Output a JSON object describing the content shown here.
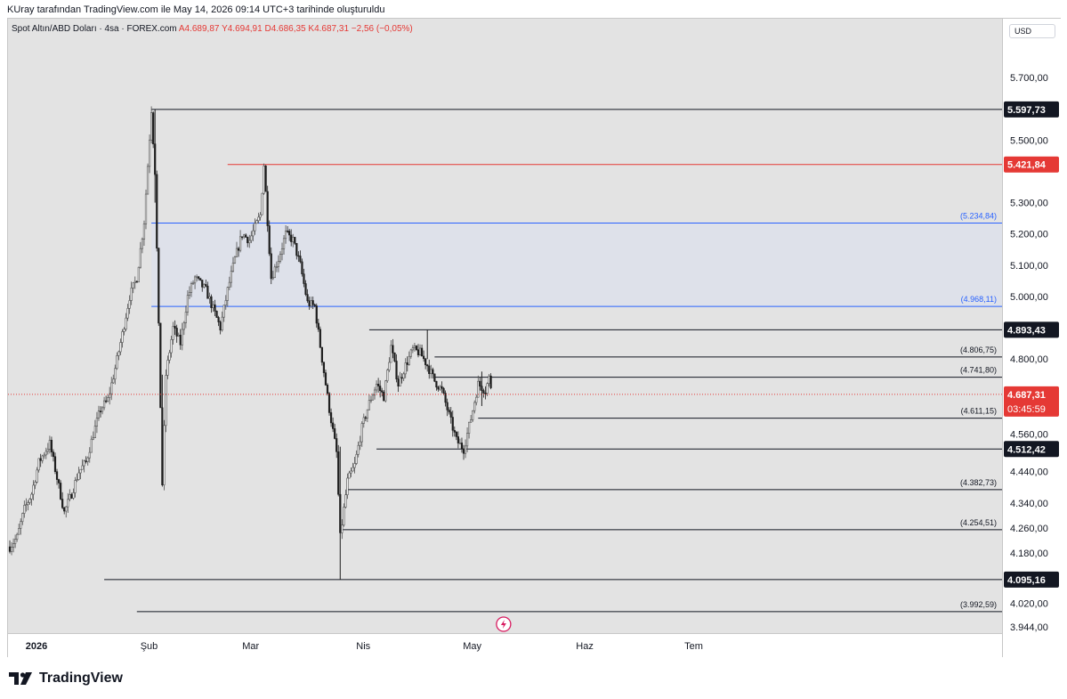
{
  "header": {
    "credit": "KUray tarafından TradingView.com ile May 14, 2026 09:14 UTC+3 tarihinde oluşturuldu"
  },
  "legend": {
    "symbol": "Spot Altın/ABD Doları · 4sa · FOREX.com",
    "open": "A4.689,87",
    "high": "Y4.694,91",
    "low": "D4.686,35",
    "close": "K4.687,31",
    "change": "−2,56 (−0,05%)"
  },
  "currency_button": "USD",
  "footer": {
    "brand": "TradingView"
  },
  "colors": {
    "background": "#e3e3e3",
    "up_candle": "#4e4e4e",
    "down_candle": "#1f1f1f",
    "red_level": "#e53935",
    "blue_level": "#2962ff",
    "zone_fill": "#dde0ea",
    "current_price": "#e53935"
  },
  "chart_data": {
    "type": "candlestick",
    "timeframe": "4sa",
    "y_axis": {
      "min": 3944,
      "max": 5700,
      "tick_labels": [
        {
          "value": 5700,
          "label": "5.700,00"
        },
        {
          "value": 5500,
          "label": "5.500,00"
        },
        {
          "value": 5300,
          "label": "5.300,00"
        },
        {
          "value": 5200,
          "label": "5.200,00"
        },
        {
          "value": 5100,
          "label": "5.100,00"
        },
        {
          "value": 5000,
          "label": "5.000,00"
        },
        {
          "value": 4800,
          "label": "4.800,00"
        },
        {
          "value": 4560,
          "label": "4.560,00"
        },
        {
          "value": 4440,
          "label": "4.440,00"
        },
        {
          "value": 4340,
          "label": "4.340,00"
        },
        {
          "value": 4260,
          "label": "4.260,00"
        },
        {
          "value": 4180,
          "label": "4.180,00"
        },
        {
          "value": 4020,
          "label": "4.020,00"
        },
        {
          "value": 3944,
          "label": "3.944,00"
        }
      ]
    },
    "x_axis": {
      "tick_labels": [
        "2026",
        "Şub",
        "Mar",
        "Nis",
        "May",
        "Haz",
        "Tem"
      ]
    },
    "price_path": [
      [
        "2026-01-01",
        4200
      ],
      [
        "2026-01-03",
        4230
      ],
      [
        "2026-01-05",
        4320
      ],
      [
        "2026-01-07",
        4370
      ],
      [
        "2026-01-09",
        4470
      ],
      [
        "2026-01-12",
        4530
      ],
      [
        "2026-01-14",
        4420
      ],
      [
        "2026-01-16",
        4310
      ],
      [
        "2026-01-18",
        4370
      ],
      [
        "2026-01-20",
        4440
      ],
      [
        "2026-01-22",
        4470
      ],
      [
        "2026-01-24",
        4560
      ],
      [
        "2026-01-26",
        4640
      ],
      [
        "2026-01-28",
        4670
      ],
      [
        "2026-01-30",
        4770
      ],
      [
        "2026-02-01",
        4880
      ],
      [
        "2026-02-03",
        5000
      ],
      [
        "2026-02-05",
        5060
      ],
      [
        "2026-02-07",
        5240
      ],
      [
        "2026-02-09",
        5597.73
      ],
      [
        "2026-02-10",
        5400
      ],
      [
        "2026-02-11",
        4900
      ],
      [
        "2026-02-12",
        4400
      ],
      [
        "2026-02-13",
        4750
      ],
      [
        "2026-02-15",
        4900
      ],
      [
        "2026-02-17",
        4850
      ],
      [
        "2026-02-19",
        5000
      ],
      [
        "2026-02-21",
        5060
      ],
      [
        "2026-02-24",
        5020
      ],
      [
        "2026-02-26",
        4960
      ],
      [
        "2026-02-28",
        4900
      ],
      [
        "2026-03-02",
        5020
      ],
      [
        "2026-03-04",
        5120
      ],
      [
        "2026-03-06",
        5200
      ],
      [
        "2026-03-08",
        5180
      ],
      [
        "2026-03-11",
        5260
      ],
      [
        "2026-03-12",
        5421.84
      ],
      [
        "2026-03-14",
        5060
      ],
      [
        "2026-03-16",
        5120
      ],
      [
        "2026-03-18",
        5200
      ],
      [
        "2026-03-20",
        5180
      ],
      [
        "2026-03-22",
        5100
      ],
      [
        "2026-03-24",
        4980
      ],
      [
        "2026-03-26",
        4968
      ],
      [
        "2026-03-28",
        4800
      ],
      [
        "2026-03-30",
        4640
      ],
      [
        "2026-04-01",
        4500
      ],
      [
        "2026-04-02",
        4230
      ],
      [
        "2026-04-04",
        4410
      ],
      [
        "2026-04-06",
        4460
      ],
      [
        "2026-04-08",
        4580
      ],
      [
        "2026-04-10",
        4660
      ],
      [
        "2026-04-12",
        4720
      ],
      [
        "2026-04-14",
        4680
      ],
      [
        "2026-04-16",
        4840
      ],
      [
        "2026-04-18",
        4720
      ],
      [
        "2026-04-20",
        4780
      ],
      [
        "2026-04-22",
        4830
      ],
      [
        "2026-04-24",
        4820
      ],
      [
        "2026-04-26",
        4780
      ],
      [
        "2026-04-28",
        4730
      ],
      [
        "2026-04-30",
        4700
      ],
      [
        "2026-05-02",
        4620
      ],
      [
        "2026-05-04",
        4540
      ],
      [
        "2026-05-06",
        4512.42
      ],
      [
        "2026-05-08",
        4610
      ],
      [
        "2026-05-10",
        4720
      ],
      [
        "2026-05-12",
        4700
      ],
      [
        "2026-05-13",
        4740
      ],
      [
        "2026-05-14",
        4687.31
      ]
    ],
    "wick_extremes": [
      {
        "date": "2026-02-10",
        "high": 5597.73,
        "low": 5300
      },
      {
        "date": "2026-02-12",
        "high": 4750,
        "low": 4400
      },
      {
        "date": "2026-04-02",
        "high": 4520,
        "low": 4095.16
      },
      {
        "date": "2026-04-26",
        "high": 4893.43,
        "low": 4800
      },
      {
        "date": "2026-05-11",
        "high": 4760,
        "low": 4650
      }
    ],
    "levels": [
      {
        "value": 5597.73,
        "label": "5.597,73",
        "kind": "badge",
        "color": "#131722",
        "from": "2026-02-09"
      },
      {
        "value": 5421.84,
        "label": "5.421,84",
        "kind": "badge",
        "color": "#e53935",
        "from": "2026-03-02"
      },
      {
        "value": 5234.84,
        "label": "(5.234,84)",
        "kind": "text",
        "color": "#2962ff",
        "from": "2026-02-09"
      },
      {
        "value": 4968.11,
        "label": "(4.968,11)",
        "kind": "text",
        "color": "#2962ff",
        "from": "2026-02-09"
      },
      {
        "value": 4893.43,
        "label": "4.893,43",
        "kind": "badge",
        "color": "#131722",
        "from": "2026-04-10"
      },
      {
        "value": 4806.75,
        "label": "(4.806,75)",
        "kind": "text",
        "color": "#131722",
        "from": "2026-04-28"
      },
      {
        "value": 4741.8,
        "label": "(4.741,80)",
        "kind": "text",
        "color": "#131722",
        "from": "2026-04-28"
      },
      {
        "value": 4611.15,
        "label": "(4.611,15)",
        "kind": "text",
        "color": "#131722",
        "from": "2026-05-10"
      },
      {
        "value": 4512.42,
        "label": "4.512,42",
        "kind": "badge",
        "color": "#131722",
        "from": "2026-04-12"
      },
      {
        "value": 4382.73,
        "label": "(4.382,73)",
        "kind": "text",
        "color": "#131722",
        "from": "2026-04-04"
      },
      {
        "value": 4254.51,
        "label": "(4.254,51)",
        "kind": "text",
        "color": "#131722",
        "from": "2026-04-02"
      },
      {
        "value": 4095.16,
        "label": "4.095,16",
        "kind": "badge",
        "color": "#131722",
        "from": "2026-01-27"
      },
      {
        "value": 3992.59,
        "label": "(3.992,59)",
        "kind": "text",
        "color": "#131722",
        "from": "2026-02-05"
      }
    ],
    "zone": {
      "from_value": 4968.11,
      "to_value": 5234.84,
      "from": "2026-02-09"
    },
    "current_price": {
      "value": 4687.31,
      "label": "4.687,31",
      "countdown": "03:45:59"
    }
  }
}
